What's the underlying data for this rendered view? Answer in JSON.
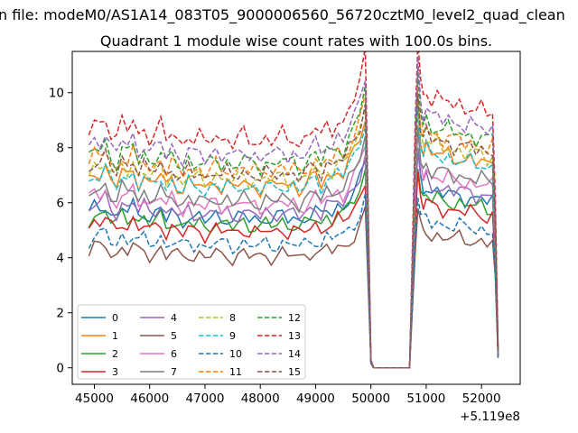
{
  "chart_data": {
    "type": "line",
    "suptitle": "n file: modeM0/AS1A14_083T05_9000006560_56720cztM0_level2_quad_clean",
    "title": "Quadrant 1 module wise count rates with 100.0s bins.",
    "xlabel": "",
    "ylabel": "",
    "x_offset_text": "+5.119e8",
    "xlim": [
      44600,
      52700
    ],
    "ylim": [
      -0.6,
      11.5
    ],
    "xticks": [
      45000,
      46000,
      47000,
      48000,
      49000,
      50000,
      51000,
      52000
    ],
    "yticks": [
      0,
      2,
      4,
      6,
      8,
      10
    ],
    "grid": false,
    "legend_position": "lower-left",
    "legend_columns": 4,
    "x": [
      44900,
      45000,
      45100,
      45200,
      45300,
      45400,
      45500,
      45600,
      45700,
      45800,
      45900,
      46000,
      46100,
      46200,
      46300,
      46400,
      46500,
      46600,
      46700,
      46800,
      46900,
      47000,
      47100,
      47200,
      47300,
      47400,
      47500,
      47600,
      47700,
      47800,
      47900,
      48000,
      48100,
      48200,
      48300,
      48400,
      48500,
      48600,
      48700,
      48800,
      48900,
      49000,
      49100,
      49200,
      49300,
      49400,
      49500,
      49600,
      49700,
      49800,
      49900,
      49950,
      50000,
      50050,
      50100,
      50200,
      50300,
      50400,
      50500,
      50600,
      50700,
      50750,
      50800,
      50850,
      50900,
      50950,
      51000,
      51100,
      51200,
      51300,
      51400,
      51500,
      51600,
      51700,
      51800,
      51900,
      52000,
      52100,
      52200,
      52250,
      52300
    ],
    "series_shape": [
      0.82,
      0.86,
      0.85,
      0.88,
      0.82,
      0.8,
      0.86,
      0.83,
      0.87,
      0.81,
      0.84,
      0.8,
      0.82,
      0.85,
      0.79,
      0.83,
      0.8,
      0.78,
      0.82,
      0.79,
      0.81,
      0.78,
      0.8,
      0.82,
      0.79,
      0.81,
      0.78,
      0.8,
      0.82,
      0.79,
      0.8,
      0.78,
      0.81,
      0.79,
      0.8,
      0.82,
      0.79,
      0.81,
      0.78,
      0.8,
      0.82,
      0.84,
      0.8,
      0.85,
      0.83,
      0.87,
      0.85,
      0.9,
      0.94,
      1.0,
      1.1,
      0.6,
      0.03,
      0.0,
      0.0,
      0.0,
      0.0,
      0.0,
      0.0,
      0.0,
      0.0,
      0.4,
      0.85,
      1.15,
      1.0,
      0.95,
      0.98,
      0.93,
      0.95,
      0.92,
      0.94,
      0.91,
      0.93,
      0.9,
      0.92,
      0.89,
      0.91,
      0.88,
      0.9,
      0.6,
      0.07
    ],
    "series": [
      {
        "name": "0",
        "color": "#1f77b4",
        "dash": "solid",
        "base": 6.8
      },
      {
        "name": "1",
        "color": "#ff7f0e",
        "dash": "solid",
        "base": 8.3
      },
      {
        "name": "2",
        "color": "#2ca02c",
        "dash": "solid",
        "base": 6.5
      },
      {
        "name": "3",
        "color": "#d62728",
        "dash": "solid",
        "base": 6.2
      },
      {
        "name": "4",
        "color": "#9467bd",
        "dash": "solid",
        "base": 7.0
      },
      {
        "name": "5",
        "color": "#8c564b",
        "dash": "solid",
        "base": 5.1
      },
      {
        "name": "6",
        "color": "#e377c2",
        "dash": "solid",
        "base": 7.4
      },
      {
        "name": "7",
        "color": "#7f7f7f",
        "dash": "solid",
        "base": 7.6
      },
      {
        "name": "8",
        "color": "#bcbd22",
        "dash": "dashed",
        "base": 8.6
      },
      {
        "name": "9",
        "color": "#17becf",
        "dash": "dashed",
        "base": 8.2
      },
      {
        "name": "10",
        "color": "#1f77b4",
        "dash": "dashed",
        "base": 5.6
      },
      {
        "name": "11",
        "color": "#ff7f0e",
        "dash": "dashed",
        "base": 9.0
      },
      {
        "name": "12",
        "color": "#2ca02c",
        "dash": "dashed",
        "base": 9.3
      },
      {
        "name": "13",
        "color": "#d62728",
        "dash": "dashed",
        "base": 10.4
      },
      {
        "name": "14",
        "color": "#9467bd",
        "dash": "dashed",
        "base": 9.7
      },
      {
        "name": "15",
        "color": "#8c564b",
        "dash": "dashed",
        "base": 8.8
      }
    ]
  }
}
